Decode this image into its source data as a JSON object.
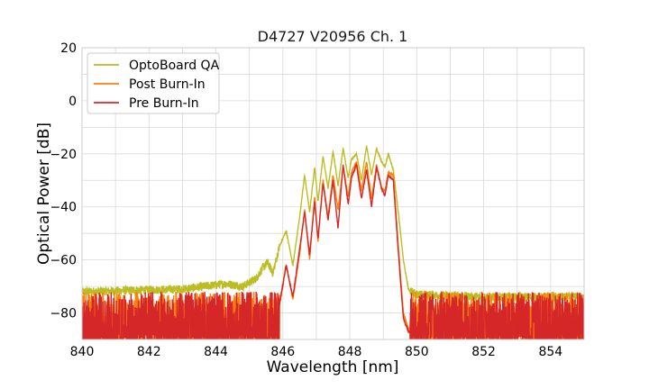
{
  "chart_data": {
    "type": "line",
    "title": "D4727 V20956 Ch. 1",
    "xlabel": "Wavelength [nm]",
    "ylabel": "Optical Power [dB]",
    "xlim": [
      840,
      855
    ],
    "ylim": [
      -90,
      20
    ],
    "x_ticks": [
      840,
      842,
      844,
      846,
      848,
      850,
      852,
      854
    ],
    "y_ticks": [
      20,
      0,
      -20,
      -40,
      -60,
      -80
    ],
    "x_tick_labels": [
      "840",
      "842",
      "844",
      "846",
      "848",
      "850",
      "852",
      "854"
    ],
    "y_tick_labels": [
      "20",
      "0",
      "−20",
      "−40",
      "−60",
      "−80"
    ],
    "grid": true,
    "legend_position": "top-left",
    "series": [
      {
        "name": "OptoBoard QA",
        "color": "#bcbd22",
        "x": [
          840.0,
          843.0,
          844.3,
          844.8,
          845.2,
          845.4,
          845.55,
          845.7,
          845.9,
          846.1,
          846.3,
          846.5,
          846.65,
          846.8,
          846.95,
          847.05,
          847.2,
          847.35,
          847.5,
          847.65,
          847.8,
          847.95,
          848.05,
          848.2,
          848.35,
          848.5,
          848.65,
          848.8,
          848.95,
          849.05,
          849.15,
          849.3,
          849.45,
          849.6,
          849.75,
          849.85,
          850.0,
          852.0,
          855.0
        ],
        "y": [
          -72,
          -71,
          -69,
          -70,
          -67,
          -63,
          -61,
          -65,
          -55,
          -49,
          -62,
          -44,
          -28,
          -42,
          -25,
          -38,
          -21,
          -33,
          -19,
          -32,
          -18,
          -29,
          -22,
          -20,
          -30,
          -17,
          -28,
          -18,
          -23,
          -25,
          -20,
          -26,
          -42,
          -60,
          -71,
          -72,
          -73,
          -74,
          -74
        ]
      },
      {
        "name": "Post Burn-In",
        "color": "#ff7f0e",
        "x": [
          840.0,
          844.5,
          845.5,
          845.7,
          845.9,
          846.1,
          846.3,
          846.5,
          846.65,
          846.8,
          846.95,
          847.05,
          847.2,
          847.35,
          847.5,
          847.65,
          847.8,
          847.95,
          848.05,
          848.2,
          848.35,
          848.5,
          848.65,
          848.8,
          848.95,
          849.05,
          849.15,
          849.3,
          849.45,
          849.6,
          849.75,
          850.0,
          855.0
        ],
        "y": [
          -84,
          -83,
          -73,
          -70,
          -76,
          -62,
          -75,
          -58,
          -41,
          -60,
          -36,
          -53,
          -30,
          -44,
          -28,
          -41,
          -25,
          -36,
          -27,
          -23,
          -34,
          -23,
          -37,
          -24,
          -33,
          -34,
          -27,
          -28,
          -55,
          -80,
          -86,
          -87,
          -87
        ]
      },
      {
        "name": "Pre Burn-In",
        "color": "#d62728",
        "x": [
          840.0,
          844.5,
          845.5,
          845.7,
          845.9,
          846.1,
          846.3,
          846.5,
          846.65,
          846.8,
          846.95,
          847.05,
          847.2,
          847.35,
          847.5,
          847.65,
          847.8,
          847.95,
          848.05,
          848.2,
          848.35,
          848.5,
          848.65,
          848.8,
          848.95,
          849.05,
          849.15,
          849.3,
          849.45,
          849.6,
          849.75,
          850.0,
          855.0
        ],
        "y": [
          -84,
          -83,
          -73,
          -68,
          -77,
          -62,
          -74,
          -56,
          -42,
          -58,
          -38,
          -52,
          -31,
          -45,
          -30,
          -48,
          -24,
          -39,
          -29,
          -24,
          -37,
          -26,
          -40,
          -25,
          -33,
          -36,
          -28,
          -30,
          -57,
          -82,
          -87,
          -87,
          -87
        ]
      }
    ],
    "noise_floor": {
      "x_range": [
        840,
        845.9
      ],
      "x_range_right": [
        849.8,
        855
      ]
    }
  }
}
